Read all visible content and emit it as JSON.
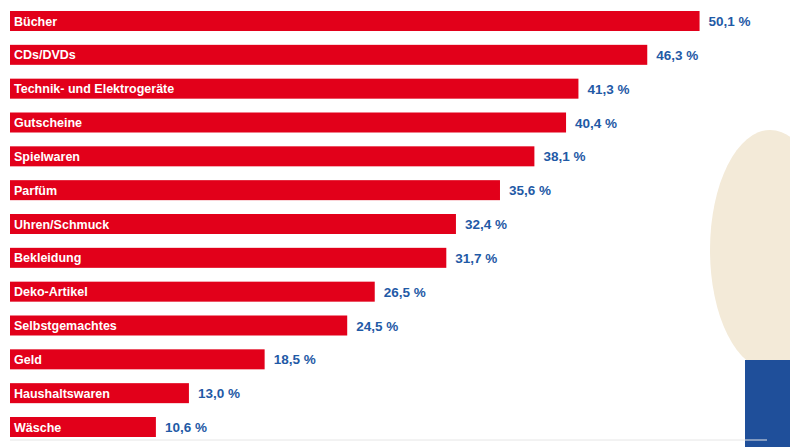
{
  "chart_data": {
    "type": "bar",
    "orientation": "horizontal",
    "categories": [
      "Bücher",
      "CDs/DVDs",
      "Technik- und Elektrogeräte",
      "Gutscheine",
      "Spielwaren",
      "Parfüm",
      "Uhren/Schmuck",
      "Bekleidung",
      "Deko-Artikel",
      "Selbstgemachtes",
      "Geld",
      "Haushaltswaren",
      "Wäsche"
    ],
    "values": [
      50.1,
      46.3,
      41.3,
      40.4,
      38.1,
      35.6,
      32.4,
      31.7,
      26.5,
      24.5,
      18.5,
      13.0,
      10.6
    ],
    "value_labels": [
      "50,1 %",
      "46,3 %",
      "41,3 %",
      "40,4 %",
      "38,1 %",
      "35,6 %",
      "32,4 %",
      "31,7 %",
      "26,5 %",
      "24,5 %",
      "18,5 %",
      "13,0 %",
      "10,6 %"
    ],
    "color": "#e2001a",
    "xlim": [
      0,
      55
    ],
    "data_labels": true,
    "tick_labels": false,
    "grid": false
  }
}
